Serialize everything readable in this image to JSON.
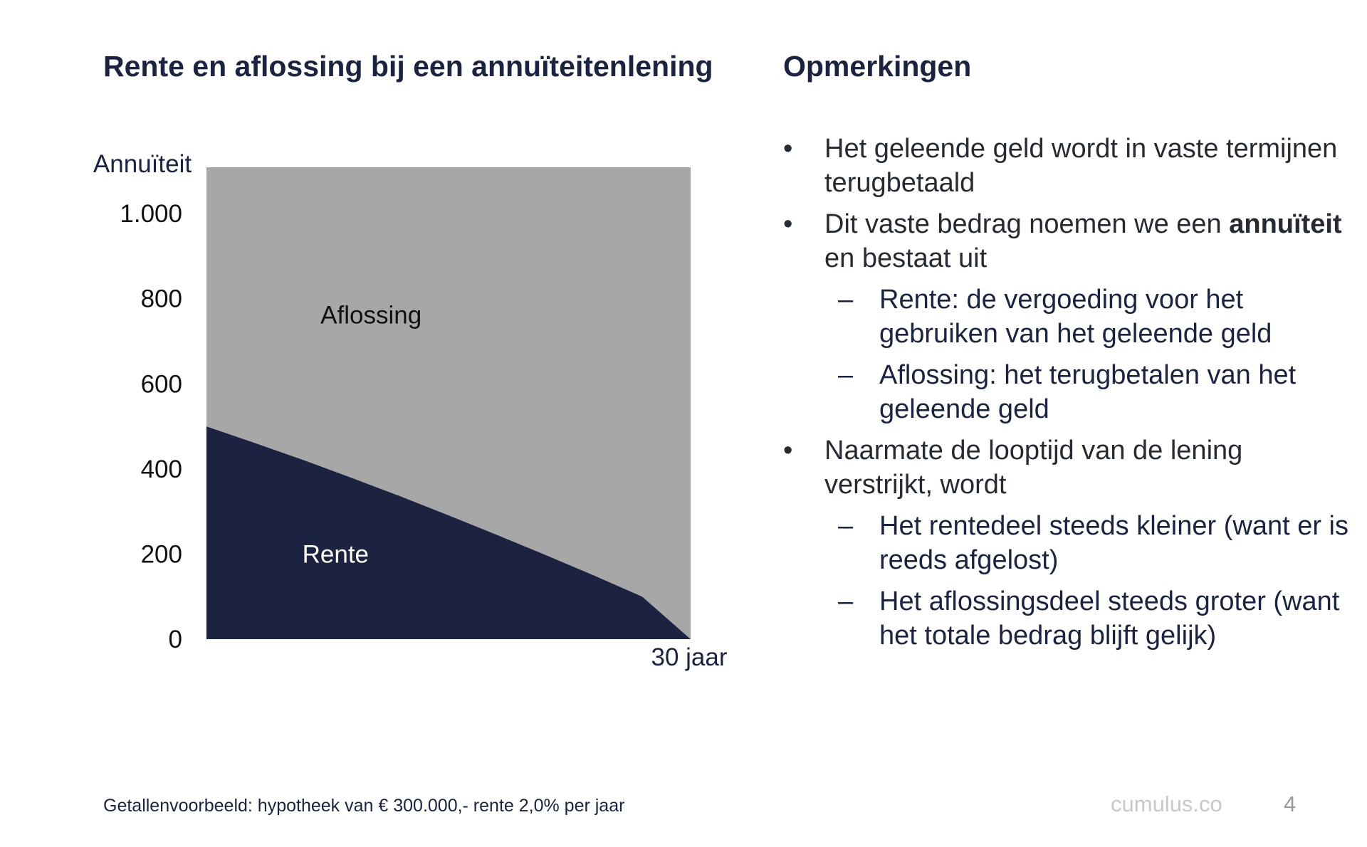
{
  "chart_title": "Rente en aflossing bij een annuïteitenlening",
  "notes_title": "Opmerkingen",
  "chart_data": {
    "type": "area",
    "stacked": true,
    "ylabel": "Annuïteit",
    "x_end_label": "30 jaar",
    "x": [
      0,
      30
    ],
    "ylim": [
      0,
      1109
    ],
    "y_ticks": [
      0,
      200,
      400,
      600,
      800,
      1000
    ],
    "y_tick_labels": [
      "0",
      "200",
      "400",
      "600",
      "800",
      "1.000"
    ],
    "annuity": 1109,
    "series": [
      {
        "name": "Rente",
        "color": "#1c2340",
        "x": [
          0,
          3,
          6,
          9,
          12,
          15,
          18,
          21,
          24,
          27,
          30
        ],
        "values": [
          500,
          461,
          421,
          379,
          336,
          291,
          245,
          198,
          150,
          100,
          0
        ]
      },
      {
        "name": "Aflossing",
        "color": "#a7a7a7",
        "x": [
          0,
          3,
          6,
          9,
          12,
          15,
          18,
          21,
          24,
          27,
          30
        ],
        "values": [
          609,
          648,
          688,
          730,
          773,
          818,
          864,
          911,
          959,
          1009,
          1109
        ]
      }
    ],
    "area_labels": [
      "Aflossing",
      "Rente"
    ]
  },
  "notes": [
    {
      "level": 1,
      "bullet": "•",
      "segments": [
        {
          "text": "Het geleende geld wordt in vaste termijnen terugbetaald",
          "bold": false
        }
      ]
    },
    {
      "level": 1,
      "bullet": "•",
      "segments": [
        {
          "text": "Dit vaste bedrag noemen we een ",
          "bold": false
        },
        {
          "text": "annuïteit",
          "bold": true
        },
        {
          "text": " en bestaat uit",
          "bold": false
        }
      ]
    },
    {
      "level": 2,
      "bullet": "–",
      "segments": [
        {
          "text": "Rente: de vergoeding voor het gebruiken van het geleende geld",
          "bold": false
        }
      ]
    },
    {
      "level": 2,
      "bullet": "–",
      "segments": [
        {
          "text": "Aflossing: het terugbetalen van het geleende geld",
          "bold": false
        }
      ]
    },
    {
      "level": 1,
      "bullet": "•",
      "segments": [
        {
          "text": "Naarmate de looptijd van de lening verstrijkt, wordt",
          "bold": false
        }
      ]
    },
    {
      "level": 2,
      "bullet": "–",
      "segments": [
        {
          "text": "Het rentedeel steeds kleiner (want er is reeds afgelost)",
          "bold": false
        }
      ]
    },
    {
      "level": 2,
      "bullet": "–",
      "segments": [
        {
          "text": "Het aflossingsdeel steeds groter (want het totale bedrag blijft gelijk)",
          "bold": false
        }
      ]
    }
  ],
  "footnote": "Getallenvoorbeeld: hypotheek van € 300.000,- rente 2,0% per jaar",
  "brand": "cumulus.co",
  "page_number": "4"
}
